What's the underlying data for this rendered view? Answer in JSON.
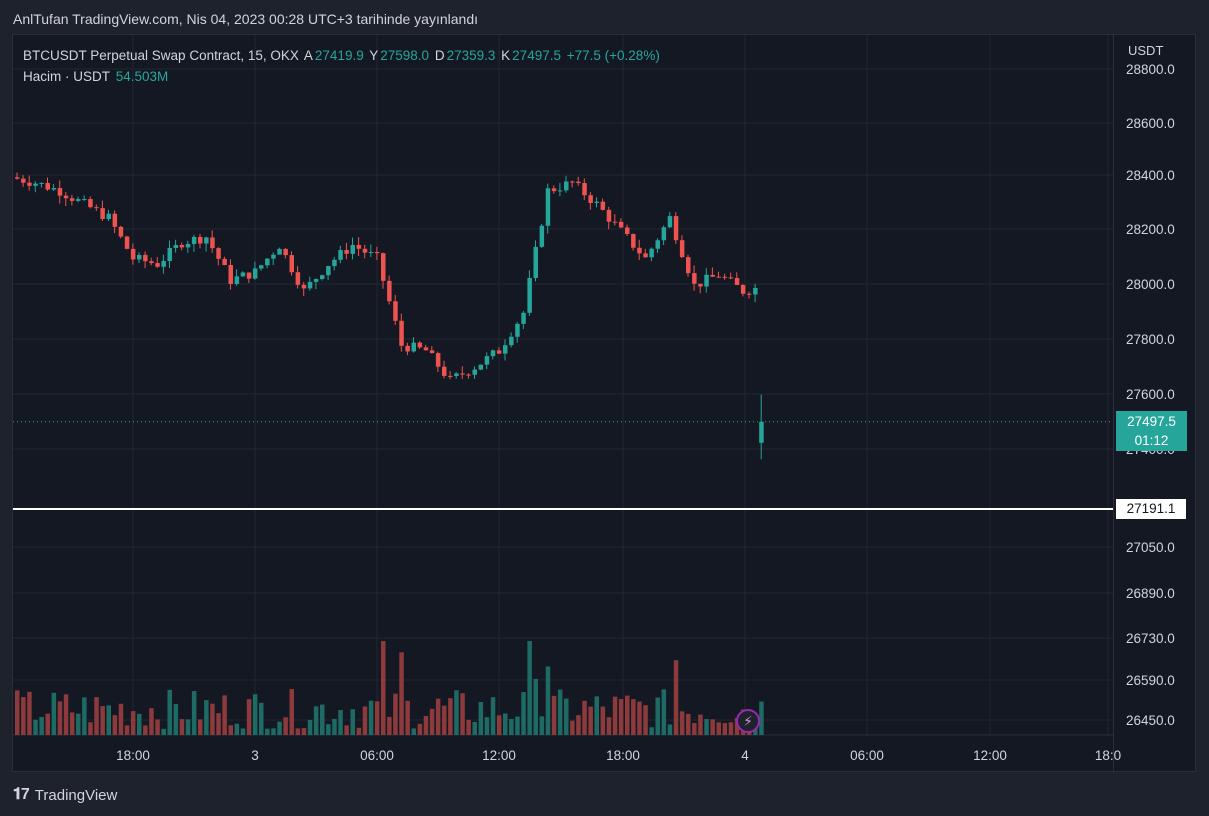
{
  "header": {
    "publisher_line": "AnlTufan TradingView.com, Nis 04, 2023 00:28 UTC+3 tarihinde yayınlandı"
  },
  "legend": {
    "symbol": "BTCUSDT Perpetual Swap Contract, 15, OKX",
    "open_label": "A",
    "open": "27419.9",
    "high_label": "Y",
    "high": "27598.0",
    "low_label": "D",
    "low": "27359.3",
    "close_label": "K",
    "close": "27497.5",
    "change": "+77.5 (+0.28%)",
    "volume_label": "Hacim · USDT",
    "volume": "54.503M"
  },
  "axis": {
    "currency": "USDT",
    "price_ticks": [
      "28800.0",
      "28600.0",
      "28400.0",
      "28200.0",
      "28000.0",
      "27800.0",
      "27600.0",
      "27400.0",
      "27050.0",
      "26890.0",
      "26730.0",
      "26590.0",
      "26450.0"
    ],
    "time_ticks": [
      "18:00",
      "3",
      "06:00",
      "12:00",
      "18:00",
      "4",
      "06:00",
      "12:00",
      "18:0"
    ],
    "current_price": "27497.5",
    "countdown": "01:12",
    "level_price": "27191.1"
  },
  "colors": {
    "up": "#26a69a",
    "down": "#ef5350",
    "up_volume": "#1d6b64",
    "down_volume": "#8c3a3b",
    "background": "#141823",
    "grid": "#222632",
    "level_line": "#ffffff"
  },
  "icons": {
    "flash": "lightning-bolt-icon",
    "logo": "tradingview-logo-icon"
  },
  "brand": {
    "name": "TradingView"
  },
  "chart_data": {
    "type": "candlestick",
    "interval": "15",
    "y_range": [
      27191.1,
      28800.0
    ],
    "horizontal_level": 27191.1,
    "time_labels": [
      "18:00",
      "3",
      "06:00",
      "12:00",
      "18:00",
      "4",
      "06:00",
      "12:00",
      "18:0"
    ],
    "shape_points_note": "close price at each hour approx",
    "close_path": [
      {
        "t": "14:00",
        "c": 28400
      },
      {
        "t": "15:00",
        "c": 28380
      },
      {
        "t": "16:00",
        "c": 28350
      },
      {
        "t": "17:00",
        "c": 28300
      },
      {
        "t": "18:00",
        "c": 28250
      },
      {
        "t": "19:00",
        "c": 28100
      },
      {
        "t": "20:00",
        "c": 28080
      },
      {
        "t": "21:00",
        "c": 28160
      },
      {
        "t": "22:00",
        "c": 28180
      },
      {
        "t": "23:00",
        "c": 28020
      },
      {
        "t": "00:00",
        "c": 28050
      },
      {
        "t": "01:00",
        "c": 28150
      },
      {
        "t": "02:00",
        "c": 27980
      },
      {
        "t": "03:00",
        "c": 28080
      },
      {
        "t": "04:00",
        "c": 28150
      },
      {
        "t": "05:00",
        "c": 28100
      },
      {
        "t": "06:00",
        "c": 27780
      },
      {
        "t": "07:00",
        "c": 27760
      },
      {
        "t": "08:00",
        "c": 27650
      },
      {
        "t": "09:00",
        "c": 27700
      },
      {
        "t": "10:00",
        "c": 27760
      },
      {
        "t": "11:00",
        "c": 27900
      },
      {
        "t": "12:00",
        "c": 28350
      },
      {
        "t": "13:00",
        "c": 28380
      },
      {
        "t": "14:00",
        "c": 28300
      },
      {
        "t": "15:00",
        "c": 28200
      },
      {
        "t": "16:00",
        "c": 28100
      },
      {
        "t": "17:00",
        "c": 28250
      },
      {
        "t": "18:00",
        "c": 28000
      },
      {
        "t": "19:00",
        "c": 28040
      },
      {
        "t": "20:00",
        "c": 27980
      },
      {
        "t": "21:00",
        "c": 28000
      },
      {
        "t": "22:00",
        "c": 28150
      },
      {
        "t": "23:00",
        "c": 28000
      },
      {
        "t": "00:00",
        "c": 27780
      },
      {
        "t": "00:15",
        "c": 27497.5
      }
    ],
    "last_candle": {
      "open": 27419.9,
      "high": 27598.0,
      "low": 27359.3,
      "close": 27497.5
    },
    "volume_last": "54.503M"
  }
}
